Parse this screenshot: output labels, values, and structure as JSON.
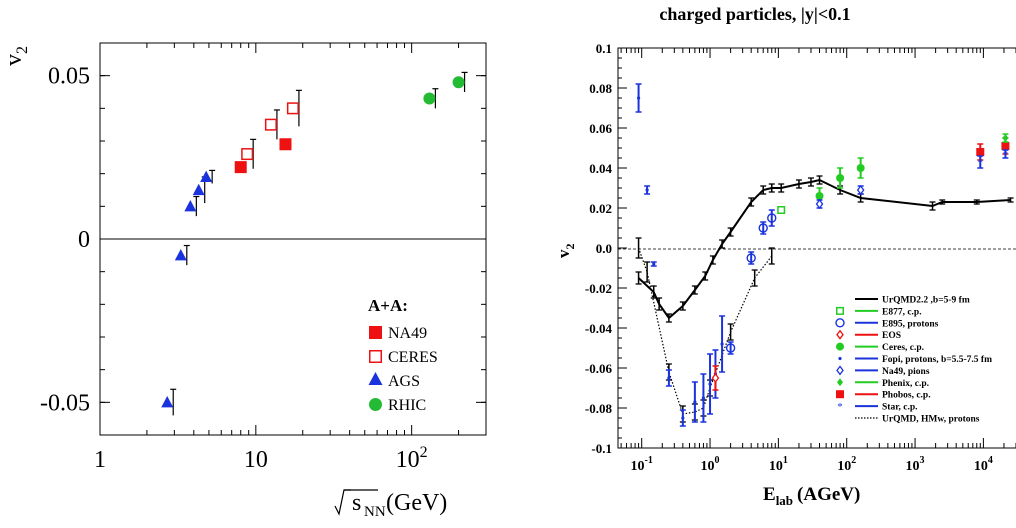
{
  "chart_data": [
    {
      "type": "scatter",
      "ylabel": "v",
      "ylabel_sub": "2",
      "xlabel_root": "s",
      "xlabel_sub": "NN",
      "xlabel_unit": "(GeV)",
      "x_log": true,
      "xlim": [
        1,
        300
      ],
      "ylim": [
        -0.06,
        0.06
      ],
      "x_ticks": [
        {
          "value": 1,
          "label": "1",
          "sup": ""
        },
        {
          "value": 10,
          "label": "10",
          "sup": ""
        },
        {
          "value": 100,
          "label": "10",
          "sup": "2"
        }
      ],
      "y_ticks": [
        {
          "value": 0.05,
          "label": "0.05"
        },
        {
          "value": 0,
          "label": "0"
        },
        {
          "value": -0.05,
          "label": "-0.05"
        }
      ],
      "legend_title": "A+A:",
      "legend_position": "bottom-right",
      "series": [
        {
          "name": "NA49",
          "marker": "square-filled",
          "color": "#ee1111",
          "points": [
            {
              "x": 8,
              "y": 0.022,
              "err": 0
            },
            {
              "x": 15.5,
              "y": 0.029,
              "err": 0
            }
          ]
        },
        {
          "name": "CERES",
          "marker": "square-open",
          "color": "#ee1111",
          "points": [
            {
              "x": 8.8,
              "y": 0.026,
              "err": 0.0045
            },
            {
              "x": 12.5,
              "y": 0.035,
              "err": 0.0045
            },
            {
              "x": 17.3,
              "y": 0.04,
              "err": 0.0055
            }
          ]
        },
        {
          "name": "AGS",
          "marker": "triangle",
          "color": "#1a33dd",
          "points": [
            {
              "x": 2.7,
              "y": -0.05,
              "err": 0.004
            },
            {
              "x": 3.3,
              "y": -0.005,
              "err": 0.003
            },
            {
              "x": 3.8,
              "y": 0.01,
              "err": 0.003
            },
            {
              "x": 4.3,
              "y": 0.015,
              "err": 0.004
            },
            {
              "x": 4.8,
              "y": 0.019,
              "err": 0.002
            }
          ]
        },
        {
          "name": "RHIC",
          "marker": "circle",
          "color": "#22bb33",
          "points": [
            {
              "x": 130,
              "y": 0.043,
              "err": 0.003
            },
            {
              "x": 200,
              "y": 0.048,
              "err": 0.003
            }
          ]
        }
      ]
    },
    {
      "type": "scatter",
      "title": "charged particles, |y|<0.1",
      "ylabel": "v",
      "ylabel_sub": "2",
      "xlabel_main": "E",
      "xlabel_sub": "lab",
      "xlabel_unit": "(AGeV)",
      "x_log": true,
      "xlim": [
        0.045,
        30000
      ],
      "ylim": [
        -0.1,
        0.1
      ],
      "grid": false,
      "x_ticks": [
        {
          "value": 0.1,
          "base": "10",
          "sup": "-1"
        },
        {
          "value": 1,
          "base": "10",
          "sup": "0"
        },
        {
          "value": 10,
          "base": "10",
          "sup": "1"
        },
        {
          "value": 100,
          "base": "10",
          "sup": "2"
        },
        {
          "value": 1000,
          "base": "10",
          "sup": "3"
        },
        {
          "value": 10000,
          "base": "10",
          "sup": "4"
        }
      ],
      "y_ticks": [
        {
          "value": 0.1,
          "label": "0.1"
        },
        {
          "value": 0.08,
          "label": "0.08"
        },
        {
          "value": 0.06,
          "label": "0.06"
        },
        {
          "value": 0.04,
          "label": "0.04"
        },
        {
          "value": 0.02,
          "label": "0.02"
        },
        {
          "value": 0.0,
          "label": "0.0"
        },
        {
          "value": -0.02,
          "label": "-0.02"
        },
        {
          "value": -0.04,
          "label": "-0.04"
        },
        {
          "value": -0.06,
          "label": "-0.06"
        },
        {
          "value": -0.08,
          "label": "-0.08"
        },
        {
          "value": -0.1,
          "label": "-0.1"
        }
      ],
      "legend_position": "bottom-right",
      "legend": [
        {
          "label": "UrQMD2.2 ,b=5-9 fm",
          "line_color": "#000000",
          "line_style": "solid",
          "marker": "none",
          "marker_color": "#000000"
        },
        {
          "label": "E877, c.p.",
          "line_color": "#22cc22",
          "line_style": "solid",
          "marker": "square-open",
          "marker_color": "#22cc22"
        },
        {
          "label": "E895, protons",
          "line_color": "#1a33dd",
          "line_style": "solid",
          "marker": "circle-open",
          "marker_color": "#1a33dd"
        },
        {
          "label": "EOS",
          "line_color": "#ee1111",
          "line_style": "solid",
          "marker": "diamond-open",
          "marker_color": "#ee1111"
        },
        {
          "label": "Ceres, c.p.",
          "line_color": "#22cc22",
          "line_style": "solid",
          "marker": "circle-filled",
          "marker_color": "#22cc22"
        },
        {
          "label": "Fopi, protons, b=5.5-7.5 fm",
          "line_color": "#1a33dd",
          "line_style": "solid",
          "marker": "dot",
          "marker_color": "#1a33dd"
        },
        {
          "label": "Na49, pions",
          "line_color": "#1a33dd",
          "line_style": "solid",
          "marker": "diamond-open",
          "marker_color": "#1a33dd"
        },
        {
          "label": "Phenix, c.p.",
          "line_color": "#22cc22",
          "line_style": "solid",
          "marker": "diamond-filled",
          "marker_color": "#22cc22"
        },
        {
          "label": "Phobos, c.p.",
          "line_color": "#ee1111",
          "line_style": "solid",
          "marker": "square-filled",
          "marker_color": "#ee1111"
        },
        {
          "label": "Star, c.p.",
          "line_color": "#1a33dd",
          "line_style": "solid",
          "marker": "star",
          "marker_color": "#1a33dd"
        },
        {
          "label": "UrQMD, HMw, protons",
          "line_color": "#000000",
          "line_style": "dotted",
          "marker": "none",
          "marker_color": "#000000"
        }
      ],
      "urqmd_curve": [
        {
          "x": 0.09,
          "y": -0.015,
          "err": 0.003
        },
        {
          "x": 0.15,
          "y": -0.022,
          "err": 0.003
        },
        {
          "x": 0.18,
          "y": -0.028,
          "err": 0.003
        },
        {
          "x": 0.25,
          "y": -0.035,
          "err": 0.002
        },
        {
          "x": 0.4,
          "y": -0.029,
          "err": 0.002
        },
        {
          "x": 0.6,
          "y": -0.021,
          "err": 0.002
        },
        {
          "x": 0.85,
          "y": -0.014,
          "err": 0.002
        },
        {
          "x": 1.1,
          "y": -0.006,
          "err": 0.002
        },
        {
          "x": 1.5,
          "y": 0.002,
          "err": 0.002
        },
        {
          "x": 2.0,
          "y": 0.008,
          "err": 0.002
        },
        {
          "x": 4.0,
          "y": 0.023,
          "err": 0.002
        },
        {
          "x": 6.0,
          "y": 0.029,
          "err": 0.002
        },
        {
          "x": 8.0,
          "y": 0.03,
          "err": 0.002
        },
        {
          "x": 11.0,
          "y": 0.03,
          "err": 0.002
        },
        {
          "x": 20.0,
          "y": 0.032,
          "err": 0.002
        },
        {
          "x": 30.0,
          "y": 0.033,
          "err": 0.002
        },
        {
          "x": 40.0,
          "y": 0.034,
          "err": 0.002
        },
        {
          "x": 80.0,
          "y": 0.029,
          "err": 0.002
        },
        {
          "x": 160.0,
          "y": 0.025,
          "err": 0.002
        },
        {
          "x": 1800.0,
          "y": 0.021,
          "err": 0.002
        },
        {
          "x": 2500.0,
          "y": 0.023,
          "err": 0.001
        },
        {
          "x": 8000.0,
          "y": 0.023,
          "err": 0.001
        },
        {
          "x": 25000.0,
          "y": 0.024,
          "err": 0.001
        }
      ],
      "urqmd_hmw_curve": [
        {
          "x": 0.09,
          "y": 0.0,
          "err": 0.005
        },
        {
          "x": 0.12,
          "y": -0.012,
          "err": 0.005
        },
        {
          "x": 0.25,
          "y": -0.062,
          "err": 0.004
        },
        {
          "x": 0.4,
          "y": -0.083,
          "err": 0.004
        },
        {
          "x": 0.6,
          "y": -0.082,
          "err": 0.004
        },
        {
          "x": 0.8,
          "y": -0.08,
          "err": 0.004
        },
        {
          "x": 1.0,
          "y": -0.07,
          "err": 0.004
        },
        {
          "x": 2.0,
          "y": -0.042,
          "err": 0.004
        },
        {
          "x": 4.5,
          "y": -0.015,
          "err": 0.004
        },
        {
          "x": 8.0,
          "y": -0.004,
          "err": 0.004
        }
      ],
      "data_points": [
        {
          "series": "Fopi, protons, b=5.5-7.5 fm",
          "x": 0.09,
          "y": 0.075,
          "err": 0.007,
          "marker": "dot",
          "color": "#1a33dd"
        },
        {
          "series": "Fopi, protons, b=5.5-7.5 fm",
          "x": 0.12,
          "y": 0.029,
          "err": 0.002,
          "marker": "dot",
          "color": "#1a33dd"
        },
        {
          "series": "Fopi, protons, b=5.5-7.5 fm",
          "x": 0.15,
          "y": -0.008,
          "err": 0.001,
          "marker": "dot",
          "color": "#1a33dd"
        },
        {
          "series": "Fopi, protons, b=5.5-7.5 fm",
          "x": 0.25,
          "y": -0.065,
          "err": 0.004,
          "marker": "dot",
          "color": "#1a33dd"
        },
        {
          "series": "Fopi, protons, b=5.5-7.5 fm",
          "x": 0.4,
          "y": -0.085,
          "err": 0.004,
          "marker": "dot",
          "color": "#1a33dd"
        },
        {
          "series": "Fopi, protons, b=5.5-7.5 fm",
          "x": 0.6,
          "y": -0.077,
          "err": 0.01,
          "marker": "dot",
          "color": "#1a33dd"
        },
        {
          "series": "Fopi, protons, b=5.5-7.5 fm",
          "x": 0.8,
          "y": -0.075,
          "err": 0.012,
          "marker": "dot",
          "color": "#1a33dd"
        },
        {
          "series": "Fopi, protons, b=5.5-7.5 fm",
          "x": 1.0,
          "y": -0.068,
          "err": 0.015,
          "marker": "dot",
          "color": "#1a33dd"
        },
        {
          "series": "Fopi, protons, b=5.5-7.5 fm",
          "x": 1.2,
          "y": -0.063,
          "err": 0.012,
          "marker": "dot",
          "color": "#1a33dd"
        },
        {
          "series": "Fopi, protons, b=5.5-7.5 fm",
          "x": 1.5,
          "y": -0.048,
          "err": 0.014,
          "marker": "dot",
          "color": "#1a33dd"
        },
        {
          "series": "E895, protons",
          "x": 2.0,
          "y": -0.05,
          "err": 0.003,
          "marker": "circle-open",
          "color": "#1a33dd"
        },
        {
          "series": "E895, protons",
          "x": 4.0,
          "y": -0.005,
          "err": 0.003,
          "marker": "circle-open",
          "color": "#1a33dd"
        },
        {
          "series": "E895, protons",
          "x": 6.0,
          "y": 0.01,
          "err": 0.003,
          "marker": "circle-open",
          "color": "#1a33dd"
        },
        {
          "series": "E895, protons",
          "x": 8.0,
          "y": 0.015,
          "err": 0.004,
          "marker": "circle-open",
          "color": "#1a33dd"
        },
        {
          "series": "EOS",
          "x": 1.2,
          "y": -0.065,
          "err": 0.006,
          "marker": "diamond-open",
          "color": "#ee1111"
        },
        {
          "series": "E877, c.p.",
          "x": 11.0,
          "y": 0.019,
          "err": 0.001,
          "marker": "square-open",
          "color": "#22cc22"
        },
        {
          "series": "Ceres, c.p.",
          "x": 40.0,
          "y": 0.026,
          "err": 0.004,
          "marker": "circle-filled",
          "color": "#22cc22"
        },
        {
          "series": "Na49, pions",
          "x": 40.0,
          "y": 0.022,
          "err": 0.002,
          "marker": "diamond-open",
          "color": "#1a33dd"
        },
        {
          "series": "Ceres, c.p.",
          "x": 80.0,
          "y": 0.035,
          "err": 0.005,
          "marker": "circle-filled",
          "color": "#22cc22"
        },
        {
          "series": "Ceres, c.p.",
          "x": 160.0,
          "y": 0.04,
          "err": 0.005,
          "marker": "circle-filled",
          "color": "#22cc22"
        },
        {
          "series": "Na49, pions",
          "x": 160.0,
          "y": 0.029,
          "err": 0.002,
          "marker": "diamond-open",
          "color": "#1a33dd"
        },
        {
          "series": "Phobos, c.p.",
          "x": 9000.0,
          "y": 0.048,
          "err": 0.004,
          "marker": "square-filled",
          "color": "#ee1111"
        },
        {
          "series": "Star, c.p.",
          "x": 9000.0,
          "y": 0.043,
          "err": 0.003,
          "marker": "star",
          "color": "#1a33dd"
        },
        {
          "series": "Phobos, c.p.",
          "x": 21000.0,
          "y": 0.051,
          "err": 0.004,
          "marker": "square-filled",
          "color": "#ee1111"
        },
        {
          "series": "Phenix, c.p.",
          "x": 21000.0,
          "y": 0.055,
          "err": 0.002,
          "marker": "diamond-filled",
          "color": "#22cc22"
        },
        {
          "series": "Star, c.p.",
          "x": 21000.0,
          "y": 0.047,
          "err": 0.002,
          "marker": "star",
          "color": "#1a33dd"
        }
      ]
    }
  ]
}
